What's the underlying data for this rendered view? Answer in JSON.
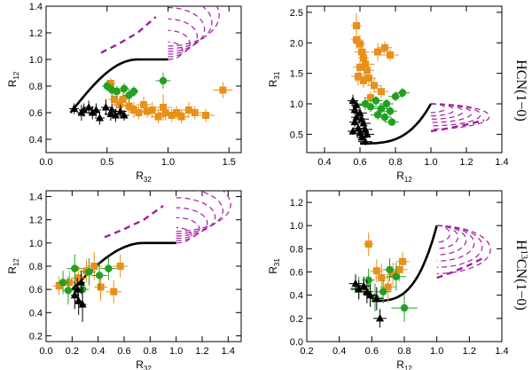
{
  "colors": {
    "orange": "#e8901a",
    "green": "#22a022",
    "black": "#000000",
    "purple": "#a020a0"
  },
  "row_labels": [
    "HCN(1−0)",
    "H13CN(1−0)"
  ],
  "chart_data": [
    {
      "id": "hcn-r12-vs-r32",
      "type": "scatter",
      "xlabel": "R32",
      "ylabel": "R12",
      "xlim": [
        0.0,
        1.6
      ],
      "ylim": [
        0.3,
        1.4
      ],
      "xticks": [
        0.0,
        0.5,
        1.0,
        1.5
      ],
      "yticks": [
        0.4,
        0.6,
        0.8,
        1.0,
        1.2,
        1.4
      ],
      "xtick_labels": [
        "0.0",
        "0.5",
        "1.0",
        "1.5"
      ],
      "ytick_labels": [
        "0.4",
        "0.6",
        "0.8",
        "1.0",
        "1.2",
        "1.4"
      ],
      "series": [
        {
          "name": "orange squares",
          "marker": "square",
          "color": "orange",
          "points": [
            [
              0.53,
              0.82,
              0.04,
              0.04
            ],
            [
              0.56,
              0.7,
              0.05,
              0.05
            ],
            [
              0.6,
              0.66,
              0.05,
              0.05
            ],
            [
              0.63,
              0.7,
              0.04,
              0.06
            ],
            [
              0.68,
              0.65,
              0.06,
              0.06
            ],
            [
              0.72,
              0.62,
              0.06,
              0.06
            ],
            [
              0.76,
              0.6,
              0.05,
              0.05
            ],
            [
              0.8,
              0.66,
              0.06,
              0.06
            ],
            [
              0.83,
              0.61,
              0.05,
              0.05
            ],
            [
              0.87,
              0.62,
              0.06,
              0.06
            ],
            [
              0.92,
              0.57,
              0.06,
              0.05
            ],
            [
              0.96,
              0.64,
              0.07,
              0.1
            ],
            [
              0.98,
              0.6,
              0.06,
              0.06
            ],
            [
              1.03,
              0.58,
              0.06,
              0.05
            ],
            [
              1.07,
              0.6,
              0.06,
              0.05
            ],
            [
              1.11,
              0.57,
              0.06,
              0.05
            ],
            [
              1.17,
              0.62,
              0.07,
              0.06
            ],
            [
              1.22,
              0.6,
              0.07,
              0.05
            ],
            [
              1.31,
              0.58,
              0.07,
              0.05
            ],
            [
              1.45,
              0.77,
              0.08,
              0.06
            ]
          ]
        },
        {
          "name": "green circles",
          "marker": "circle",
          "color": "green",
          "points": [
            [
              0.5,
              0.8,
              0.04,
              0.04
            ],
            [
              0.54,
              0.77,
              0.04,
              0.05
            ],
            [
              0.58,
              0.76,
              0.05,
              0.04
            ],
            [
              0.64,
              0.78,
              0.04,
              0.04
            ],
            [
              0.68,
              0.73,
              0.05,
              0.05
            ],
            [
              0.72,
              0.76,
              0.04,
              0.04
            ],
            [
              0.96,
              0.84,
              0.06,
              0.06
            ]
          ]
        },
        {
          "name": "black triangles",
          "marker": "triangle",
          "color": "black",
          "points": [
            [
              0.23,
              0.63,
              0.04,
              0.04
            ],
            [
              0.29,
              0.6,
              0.04,
              0.06
            ],
            [
              0.31,
              0.62,
              0.04,
              0.05
            ],
            [
              0.35,
              0.64,
              0.04,
              0.05
            ],
            [
              0.38,
              0.6,
              0.04,
              0.05
            ],
            [
              0.41,
              0.62,
              0.04,
              0.05
            ],
            [
              0.44,
              0.56,
              0.04,
              0.05
            ],
            [
              0.49,
              0.64,
              0.04,
              0.06
            ],
            [
              0.53,
              0.59,
              0.05,
              0.05
            ],
            [
              0.54,
              0.62,
              0.04,
              0.05
            ],
            [
              0.57,
              0.58,
              0.04,
              0.05
            ],
            [
              0.61,
              0.61,
              0.05,
              0.05
            ],
            [
              0.64,
              0.58,
              0.04,
              0.04
            ]
          ]
        }
      ]
    },
    {
      "id": "hcn-r31-vs-r12",
      "type": "scatter",
      "xlabel": "R12",
      "ylabel": "R31",
      "xlim": [
        0.3,
        1.4
      ],
      "ylim": [
        0.2,
        2.6
      ],
      "xticks": [
        0.4,
        0.6,
        0.8,
        1.0,
        1.2,
        1.4
      ],
      "yticks": [
        0.5,
        1.0,
        1.5,
        2.0,
        2.5
      ],
      "xtick_labels": [
        "0.4",
        "0.6",
        "0.8",
        "1.0",
        "1.2",
        "1.4"
      ],
      "ytick_labels": [
        "0.5",
        "1.0",
        "1.5",
        "2.0",
        "2.5"
      ],
      "series": [
        {
          "name": "orange squares",
          "marker": "square",
          "color": "orange",
          "points": [
            [
              0.58,
              2.28,
              0.03,
              0.2
            ],
            [
              0.58,
              2.05,
              0.03,
              0.15
            ],
            [
              0.6,
              1.98,
              0.03,
              0.15
            ],
            [
              0.61,
              1.85,
              0.04,
              0.15
            ],
            [
              0.62,
              1.75,
              0.03,
              0.15
            ],
            [
              0.63,
              1.65,
              0.05,
              0.25
            ],
            [
              0.6,
              1.6,
              0.04,
              0.12
            ],
            [
              0.64,
              1.55,
              0.04,
              0.12
            ],
            [
              0.59,
              1.45,
              0.04,
              0.15
            ],
            [
              0.65,
              1.42,
              0.04,
              0.12
            ],
            [
              0.62,
              1.38,
              0.05,
              0.12
            ],
            [
              0.68,
              1.3,
              0.04,
              0.12
            ],
            [
              0.7,
              1.85,
              0.04,
              0.15
            ],
            [
              0.74,
              1.92,
              0.04,
              0.1
            ],
            [
              0.77,
              1.8,
              0.05,
              0.1
            ],
            [
              0.72,
              1.2,
              0.04,
              0.1
            ],
            [
              0.66,
              1.1,
              0.04,
              0.1
            ]
          ]
        },
        {
          "name": "green circles",
          "marker": "circle",
          "color": "green",
          "points": [
            [
              0.63,
              1.0,
              0.04,
              0.1
            ],
            [
              0.66,
              0.95,
              0.04,
              0.08
            ],
            [
              0.69,
              1.05,
              0.04,
              0.08
            ],
            [
              0.72,
              0.92,
              0.04,
              0.08
            ],
            [
              0.75,
              1.0,
              0.04,
              0.08
            ],
            [
              0.7,
              0.82,
              0.04,
              0.08
            ],
            [
              0.74,
              0.78,
              0.04,
              0.08
            ],
            [
              0.77,
              0.88,
              0.04,
              0.08
            ],
            [
              0.8,
              1.12,
              0.04,
              0.08
            ],
            [
              0.84,
              1.18,
              0.04,
              0.08
            ],
            [
              0.78,
              0.7,
              0.04,
              0.06
            ]
          ]
        },
        {
          "name": "black triangles",
          "marker": "triangle",
          "color": "black",
          "points": [
            [
              0.56,
              1.05,
              0.03,
              0.1
            ],
            [
              0.58,
              0.98,
              0.03,
              0.08
            ],
            [
              0.57,
              0.9,
              0.03,
              0.08
            ],
            [
              0.6,
              0.85,
              0.04,
              0.08
            ],
            [
              0.58,
              0.78,
              0.03,
              0.08
            ],
            [
              0.61,
              0.75,
              0.04,
              0.08
            ],
            [
              0.57,
              0.7,
              0.03,
              0.08
            ],
            [
              0.62,
              0.68,
              0.04,
              0.08
            ],
            [
              0.59,
              0.6,
              0.03,
              0.06
            ],
            [
              0.63,
              0.58,
              0.04,
              0.06
            ],
            [
              0.56,
              0.55,
              0.03,
              0.06
            ],
            [
              0.6,
              0.52,
              0.03,
              0.06
            ],
            [
              0.64,
              0.5,
              0.04,
              0.06
            ],
            [
              0.61,
              0.45,
              0.03,
              0.06
            ],
            [
              0.63,
              0.38,
              0.04,
              0.06
            ]
          ]
        }
      ]
    },
    {
      "id": "h13cn-r12-vs-r32",
      "type": "scatter",
      "xlabel": "R32",
      "ylabel": "R12",
      "xlim": [
        0.0,
        1.5
      ],
      "ylim": [
        0.15,
        1.45
      ],
      "xticks": [
        0.0,
        0.2,
        0.4,
        0.6,
        0.8,
        1.0,
        1.2,
        1.4
      ],
      "yticks": [
        0.2,
        0.4,
        0.6,
        0.8,
        1.0,
        1.2,
        1.4
      ],
      "xtick_labels": [
        "0.0",
        "0.2",
        "0.4",
        "0.6",
        "0.8",
        "1.0",
        "1.2",
        "1.4"
      ],
      "ytick_labels": [
        "0.2",
        "0.4",
        "0.6",
        "0.8",
        "1.0",
        "1.2",
        "1.4"
      ],
      "series": [
        {
          "name": "orange squares",
          "marker": "square",
          "color": "orange",
          "points": [
            [
              0.1,
              0.63,
              0.05,
              0.08
            ],
            [
              0.18,
              0.66,
              0.06,
              0.1
            ],
            [
              0.25,
              0.7,
              0.06,
              0.1
            ],
            [
              0.31,
              0.76,
              0.05,
              0.1
            ],
            [
              0.37,
              0.8,
              0.06,
              0.12
            ],
            [
              0.42,
              0.62,
              0.05,
              0.12
            ],
            [
              0.52,
              0.58,
              0.06,
              0.1
            ],
            [
              0.57,
              0.8,
              0.06,
              0.1
            ]
          ]
        },
        {
          "name": "green circles",
          "marker": "circle",
          "color": "green",
          "points": [
            [
              0.13,
              0.66,
              0.05,
              0.1
            ],
            [
              0.17,
              0.59,
              0.04,
              0.12
            ],
            [
              0.22,
              0.78,
              0.06,
              0.12
            ],
            [
              0.28,
              0.6,
              0.05,
              0.08
            ],
            [
              0.33,
              0.75,
              0.05,
              0.12
            ],
            [
              0.41,
              0.72,
              0.06,
              0.12
            ],
            [
              0.48,
              0.78,
              0.06,
              0.1
            ]
          ]
        },
        {
          "name": "black triangles",
          "marker": "triangle",
          "color": "black",
          "points": [
            [
              0.22,
              0.55,
              0.03,
              0.12
            ],
            [
              0.24,
              0.6,
              0.03,
              0.1
            ],
            [
              0.25,
              0.5,
              0.03,
              0.12
            ],
            [
              0.27,
              0.66,
              0.03,
              0.1
            ],
            [
              0.28,
              0.47,
              0.03,
              0.15
            ]
          ]
        }
      ]
    },
    {
      "id": "h13cn-r31-vs-r12",
      "type": "scatter",
      "xlabel": "R12",
      "ylabel": "R31",
      "xlim": [
        0.2,
        1.4
      ],
      "ylim": [
        0.0,
        1.3
      ],
      "xticks": [
        0.2,
        0.4,
        0.6,
        0.8,
        1.0,
        1.2,
        1.4
      ],
      "yticks": [
        0.0,
        0.2,
        0.4,
        0.6,
        0.8,
        1.0,
        1.2
      ],
      "xtick_labels": [
        "0.2",
        "0.4",
        "0.6",
        "0.8",
        "1.0",
        "1.2",
        "1.4"
      ],
      "ytick_labels": [
        "0.0",
        "0.2",
        "0.4",
        "0.6",
        "0.8",
        "1.0",
        "1.2"
      ],
      "series": [
        {
          "name": "orange squares",
          "marker": "square",
          "color": "orange",
          "points": [
            [
              0.58,
              0.84,
              0.03,
              0.1
            ],
            [
              0.63,
              0.61,
              0.04,
              0.1
            ],
            [
              0.66,
              0.55,
              0.04,
              0.12
            ],
            [
              0.7,
              0.47,
              0.05,
              0.12
            ],
            [
              0.73,
              0.58,
              0.04,
              0.1
            ],
            [
              0.77,
              0.62,
              0.05,
              0.1
            ],
            [
              0.79,
              0.69,
              0.04,
              0.08
            ]
          ]
        },
        {
          "name": "green circles",
          "marker": "circle",
          "color": "green",
          "points": [
            [
              0.52,
              0.46,
              0.05,
              0.1
            ],
            [
              0.58,
              0.53,
              0.04,
              0.1
            ],
            [
              0.62,
              0.38,
              0.05,
              0.12
            ],
            [
              0.67,
              0.43,
              0.05,
              0.1
            ],
            [
              0.71,
              0.62,
              0.04,
              0.1
            ],
            [
              0.75,
              0.56,
              0.06,
              0.12
            ],
            [
              0.8,
              0.29,
              0.08,
              0.12
            ]
          ]
        },
        {
          "name": "black triangles",
          "marker": "triangle",
          "color": "black",
          "points": [
            [
              0.5,
              0.5,
              0.04,
              0.08
            ],
            [
              0.52,
              0.45,
              0.05,
              0.08
            ],
            [
              0.55,
              0.48,
              0.04,
              0.08
            ],
            [
              0.57,
              0.43,
              0.04,
              0.1
            ],
            [
              0.59,
              0.4,
              0.04,
              0.1
            ],
            [
              0.63,
              0.37,
              0.04,
              0.1
            ],
            [
              0.65,
              0.2,
              0.04,
              0.08
            ]
          ]
        }
      ]
    }
  ]
}
